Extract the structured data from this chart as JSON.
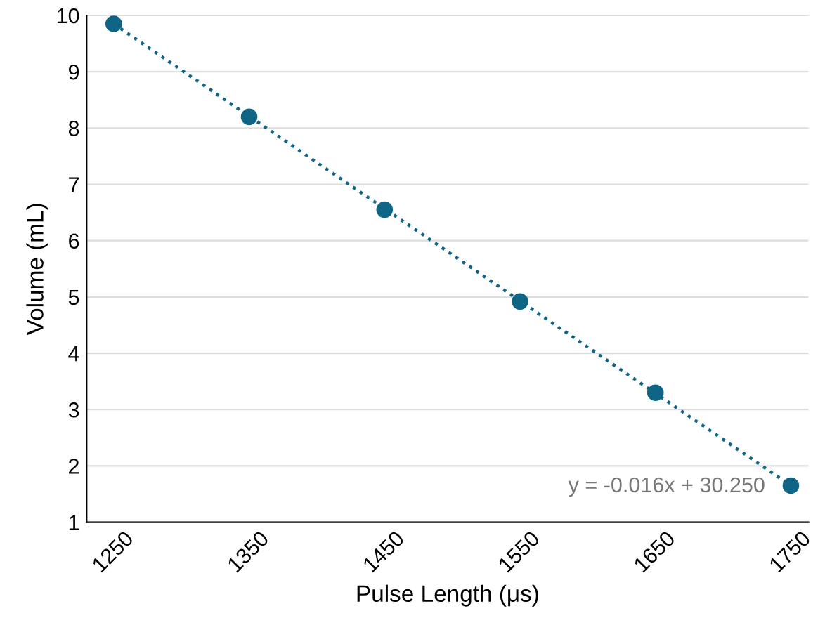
{
  "chart_data": {
    "type": "scatter",
    "xlabel": "Pulse Length (μs)",
    "ylabel": "Volume (mL)",
    "x": [
      1250,
      1350,
      1450,
      1550,
      1650,
      1750
    ],
    "series": [
      {
        "color": "#0f6585",
        "values": [
          9.85,
          8.2,
          6.55,
          4.92,
          3.3,
          1.65
        ],
        "marker": "circle"
      },
      {
        "type": "line",
        "color": "#0f6585",
        "x": [
          1250,
          1750
        ],
        "values": [
          9.85,
          1.65
        ],
        "line_style": "dotted"
      }
    ],
    "annotations": [
      "y = -0.016x + 30.250"
    ],
    "xlim": [
      1230,
      1763
    ],
    "xticks": [
      1250,
      1350,
      1450,
      1550,
      1650,
      1750
    ],
    "ylim": [
      1,
      10
    ],
    "yticks": [
      1,
      2,
      3,
      4,
      5,
      6,
      7,
      8,
      9,
      10
    ],
    "grid": "y"
  }
}
